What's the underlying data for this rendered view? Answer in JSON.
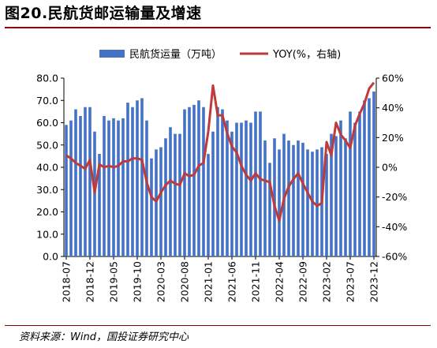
{
  "page": {
    "title": "图20.民航货邮运输量及增速",
    "source": "资料来源：Wind，国投证券研究中心"
  },
  "colors": {
    "bar": "#4472c4",
    "line": "#c0393b"
  },
  "chart_data": {
    "type": "bar+line",
    "title": "图20.民航货邮运输量及增速",
    "x": [
      "2018-07",
      "2018-08",
      "2018-09",
      "2018-10",
      "2018-11",
      "2018-12",
      "2019-01",
      "2019-02",
      "2019-03",
      "2019-04",
      "2019-05",
      "2019-06",
      "2019-07",
      "2019-08",
      "2019-09",
      "2019-10",
      "2019-11",
      "2019-12",
      "2020-01",
      "2020-02",
      "2020-03",
      "2020-04",
      "2020-05",
      "2020-06",
      "2020-07",
      "2020-08",
      "2020-09",
      "2020-10",
      "2020-11",
      "2020-12",
      "2021-01",
      "2021-02",
      "2021-03",
      "2021-04",
      "2021-05",
      "2021-06",
      "2021-07",
      "2021-08",
      "2021-09",
      "2021-10",
      "2021-11",
      "2021-12",
      "2022-01",
      "2022-02",
      "2022-03",
      "2022-04",
      "2022-05",
      "2022-06",
      "2022-07",
      "2022-08",
      "2022-09",
      "2022-10",
      "2022-11",
      "2022-12",
      "2023-01",
      "2023-02",
      "2023-03",
      "2023-04",
      "2023-05",
      "2023-06",
      "2023-07",
      "2023-08",
      "2023-09",
      "2023-10",
      "2023-11",
      "2023-12"
    ],
    "x_tick_labels": [
      "2018-07",
      "2018-12",
      "2019-05",
      "2019-10",
      "2020-03",
      "2020-08",
      "2021-01",
      "2021-06",
      "2021-11",
      "2022-04",
      "2022-09",
      "2023-02",
      "2023-07",
      "2023-12"
    ],
    "series": [
      {
        "name": "民航货运量（万吨）",
        "axis": "left",
        "type": "bar",
        "values": [
          59,
          61,
          66,
          63,
          67,
          67,
          56,
          46,
          63,
          61,
          62,
          61,
          62,
          69,
          67,
          70,
          71,
          61,
          44,
          48,
          49,
          53,
          58,
          55,
          55,
          66,
          67,
          68,
          70,
          67,
          46,
          56,
          67,
          66,
          61,
          56,
          60,
          60,
          61,
          60,
          65,
          65,
          52,
          42,
          53,
          48,
          55,
          52,
          50,
          52,
          51,
          48,
          47,
          48,
          49,
          46,
          55,
          54,
          61,
          53,
          65,
          60,
          65,
          70,
          71,
          74
        ],
        "ylim": [
          0,
          80
        ],
        "yticks": [
          "0.0",
          "10.0",
          "20.0",
          "30.0",
          "40.0",
          "50.0",
          "60.0",
          "70.0",
          "80.0"
        ]
      },
      {
        "name": "YOY(%，右轴)",
        "axis": "right",
        "type": "line",
        "values": [
          8,
          6,
          3,
          1,
          -1,
          5,
          -17,
          2,
          0,
          1,
          0,
          1,
          4,
          4,
          6,
          6,
          5,
          -10,
          -20,
          -23,
          -17,
          -12,
          -9,
          -11,
          -12,
          -4,
          -6,
          -5,
          1,
          3,
          24,
          55,
          35,
          35,
          23,
          14,
          10,
          1,
          -5,
          -9,
          -4,
          -8,
          -9,
          -10,
          -26,
          -36,
          -21,
          -13,
          -8,
          -4,
          -11,
          -17,
          -23,
          -26,
          -24,
          17,
          8,
          30,
          22,
          18,
          13,
          28,
          36,
          43,
          53,
          57
        ],
        "ylim": [
          -60,
          60
        ],
        "yticks": [
          "-60%",
          "-40%",
          "-20%",
          "0%",
          "20%",
          "40%",
          "60%"
        ]
      }
    ],
    "legend_position": "top"
  }
}
